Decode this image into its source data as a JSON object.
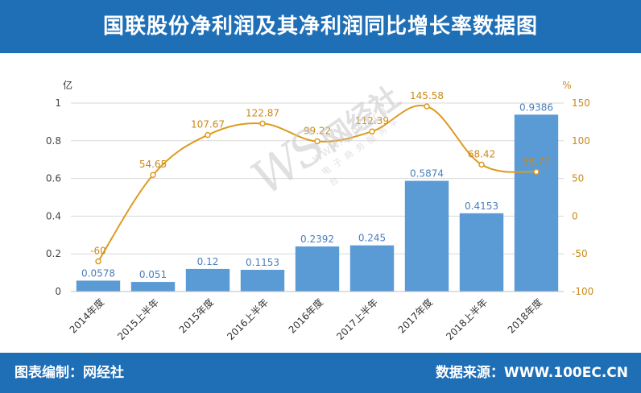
{
  "header": {
    "title": "国联股份净利润及其净利润同比增长率数据图"
  },
  "footer": {
    "left": "图表编制：网经社",
    "right": "数据来源：WWW.100EC.CN"
  },
  "watermark": {
    "ws": "WS",
    "cn": "网经社",
    "url": "WWW.100EC.CN",
    "sub": "电子商务服务平台"
  },
  "colors": {
    "bar": "#5b9bd5",
    "bar_label": "#4a7ebb",
    "line": "#de9a1f",
    "line_label": "#c98a1a",
    "brand": "#1f6fb7"
  },
  "chart_data": {
    "type": "bar+line",
    "categories": [
      "2014年度",
      "2015上半年",
      "2015年度",
      "2016上半年",
      "2016年度",
      "2017上半年",
      "2017年度",
      "2018上半年",
      "2018年度"
    ],
    "series": [
      {
        "values": [
          0.0578,
          0.051,
          0.12,
          0.1153,
          0.2392,
          0.245,
          0.5874,
          0.4153,
          0.9386
        ],
        "axis": "left",
        "type": "bar"
      },
      {
        "values": [
          -60,
          54.65,
          107.67,
          122.87,
          99.22,
          112.39,
          145.58,
          68.42,
          58.77
        ],
        "axis": "right",
        "type": "line"
      }
    ],
    "y_left": {
      "unit": "亿",
      "min": 0,
      "max": 1,
      "ticks": [
        "0",
        "0.2",
        "0.4",
        "0.6",
        "0.8",
        "1"
      ]
    },
    "y_right": {
      "unit": "%",
      "min": -100,
      "max": 150,
      "ticks": [
        "-100",
        "-50",
        "0",
        "50",
        "100",
        "150"
      ]
    },
    "grid": true,
    "legend": "none"
  }
}
